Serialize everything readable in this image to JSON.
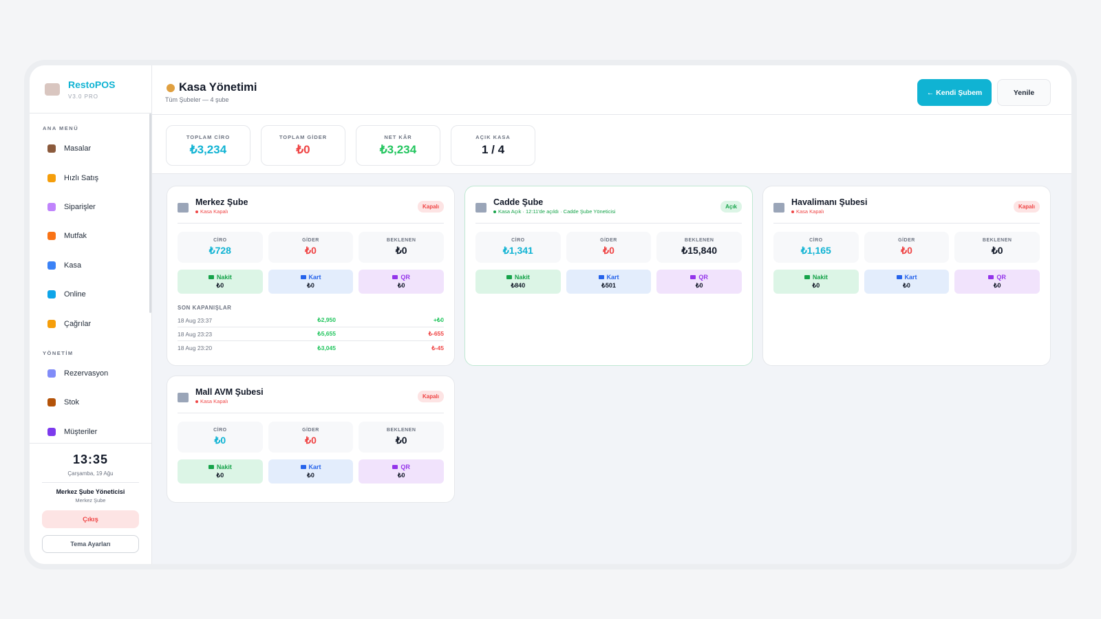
{
  "sidebar": {
    "brand": "RestoPOS",
    "version": "V3.0 PRO",
    "sections": [
      {
        "title": "ANA MENÜ",
        "items": [
          "Masalar",
          "Hızlı Satış",
          "Siparişler",
          "Mutfak",
          "Kasa",
          "Online",
          "Çağrılar"
        ]
      },
      {
        "title": "YÖNETİM",
        "items": [
          "Rezervasyon",
          "Stok",
          "Müşteriler"
        ]
      }
    ],
    "clock": "13:35",
    "date": "Çarşamba, 19 Ağu",
    "user": "Merkez Şube Yöneticisi",
    "branch": "Merkez Şube",
    "logout": "Çıkış",
    "theme": "Tema Ayarları"
  },
  "header": {
    "title": "Kasa Yönetimi",
    "subtitle": "Tüm Şubeler — 4 şube",
    "buttons": [
      "← Kendi Şubem",
      "Yenile"
    ]
  },
  "summary": [
    {
      "label": "TOPLAM CİRO",
      "value": "₺3,234",
      "color": "#10b3d3"
    },
    {
      "label": "TOPLAM GİDER",
      "value": "₺0",
      "color": "#ef4444"
    },
    {
      "label": "NET KÂR",
      "value": "₺3,234",
      "color": "#22c55e"
    },
    {
      "label": "AÇIK KASA",
      "value": "1 / 4",
      "color": "#111827"
    }
  ],
  "branches": [
    {
      "name": "Merkez Şube",
      "status": "Kasa Kapalı",
      "badge": "Kapalı",
      "open": false,
      "stats": [
        {
          "label": "CİRO",
          "value": "₺728"
        },
        {
          "label": "GİDER",
          "value": "₺0"
        },
        {
          "label": "BEKLENEN",
          "value": "₺0"
        }
      ],
      "payments": [
        {
          "label": "Nakit",
          "value": "₺0"
        },
        {
          "label": "Kart",
          "value": "₺0"
        },
        {
          "label": "QR",
          "value": "₺0"
        }
      ],
      "closings_title": "SON KAPANIŞLAR",
      "closings": [
        {
          "date": "18 Aug 23:37",
          "amount": "₺2,950",
          "diff": "+₺0",
          "diff_color": "#22c55e"
        },
        {
          "date": "18 Aug 23:23",
          "amount": "₺5,655",
          "diff": "₺-655",
          "diff_color": "#ef4444"
        },
        {
          "date": "18 Aug 23:20",
          "amount": "₺3,045",
          "diff": "₺-45",
          "diff_color": "#ef4444"
        }
      ]
    },
    {
      "name": "Cadde Şube",
      "status": "Kasa Açık · 12:11'de açıldı · Cadde Şube Yöneticisi",
      "badge": "Açık",
      "open": true,
      "stats": [
        {
          "label": "CİRO",
          "value": "₺1,341"
        },
        {
          "label": "GİDER",
          "value": "₺0"
        },
        {
          "label": "BEKLENEN",
          "value": "₺15,840"
        }
      ],
      "payments": [
        {
          "label": "Nakit",
          "value": "₺840"
        },
        {
          "label": "Kart",
          "value": "₺501"
        },
        {
          "label": "QR",
          "value": "₺0"
        }
      ]
    },
    {
      "name": "Havalimanı Şubesi",
      "status": "Kasa Kapalı",
      "badge": "Kapalı",
      "open": false,
      "stats": [
        {
          "label": "CİRO",
          "value": "₺1,165"
        },
        {
          "label": "GİDER",
          "value": "₺0"
        },
        {
          "label": "BEKLENEN",
          "value": "₺0"
        }
      ],
      "payments": [
        {
          "label": "Nakit",
          "value": "₺0"
        },
        {
          "label": "Kart",
          "value": "₺0"
        },
        {
          "label": "QR",
          "value": "₺0"
        }
      ]
    },
    {
      "name": "Mall AVM Şubesi",
      "status": "Kasa Kapalı",
      "badge": "Kapalı",
      "open": false,
      "stats": [
        {
          "label": "CİRO",
          "value": "₺0"
        },
        {
          "label": "GİDER",
          "value": "₺0"
        },
        {
          "label": "BEKLENEN",
          "value": "₺0"
        }
      ],
      "payments": [
        {
          "label": "Nakit",
          "value": "₺0"
        },
        {
          "label": "Kart",
          "value": "₺0"
        },
        {
          "label": "QR",
          "value": "₺0"
        }
      ]
    }
  ]
}
